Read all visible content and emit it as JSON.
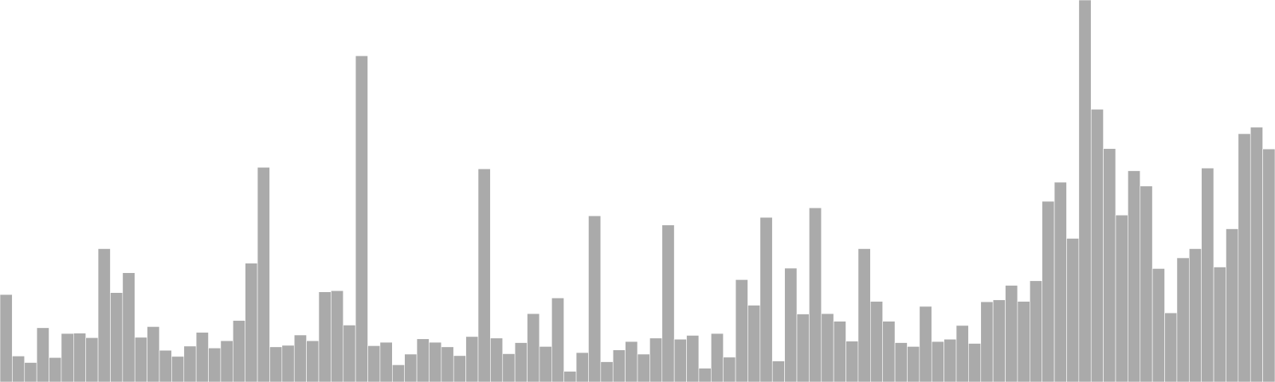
{
  "chart_data": {
    "type": "bar",
    "title": "",
    "xlabel": "",
    "ylabel": "",
    "grid": false,
    "legend": "none",
    "ylim": [
      0,
      100
    ],
    "bar_color": "#aaaaaa",
    "bar_edge_color": "#ffffff",
    "background_color": "#ffffff",
    "values": [
      22.9,
      6.8,
      5.1,
      14.2,
      6.4,
      12.7,
      12.8,
      11.6,
      34.9,
      23.4,
      28.6,
      11.7,
      14.5,
      8.3,
      6.7,
      9.4,
      13.0,
      8.9,
      10.8,
      16.1,
      31.1,
      56.2,
      9.2,
      9.6,
      12.3,
      10.8,
      23.6,
      23.9,
      14.9,
      85.4,
      9.5,
      10.4,
      4.5,
      7.3,
      11.3,
      10.4,
      9.2,
      6.9,
      11.9,
      55.8,
      11.5,
      7.4,
      10.3,
      17.9,
      9.3,
      22.0,
      2.8,
      7.7,
      43.5,
      5.3,
      8.4,
      10.6,
      7.3,
      11.5,
      41.1,
      11.2,
      12.2,
      3.6,
      12.7,
      6.5,
      26.8,
      20.1,
      43.1,
      5.5,
      29.8,
      17.8,
      45.6,
      17.9,
      15.9,
      10.7,
      34.9,
      21.1,
      15.9,
      10.3,
      9.3,
      19.8,
      10.6,
      11.2,
      14.8,
      10.1,
      21.0,
      21.5,
      25.3,
      21.1,
      26.5,
      47.3,
      52.3,
      37.6,
      100.0,
      71.4,
      61.1,
      43.7,
      55.3,
      51.3,
      29.7,
      18.1,
      32.5,
      34.9,
      56.0,
      30.1,
      40.1,
      65.0,
      66.7,
      61.0
    ]
  }
}
